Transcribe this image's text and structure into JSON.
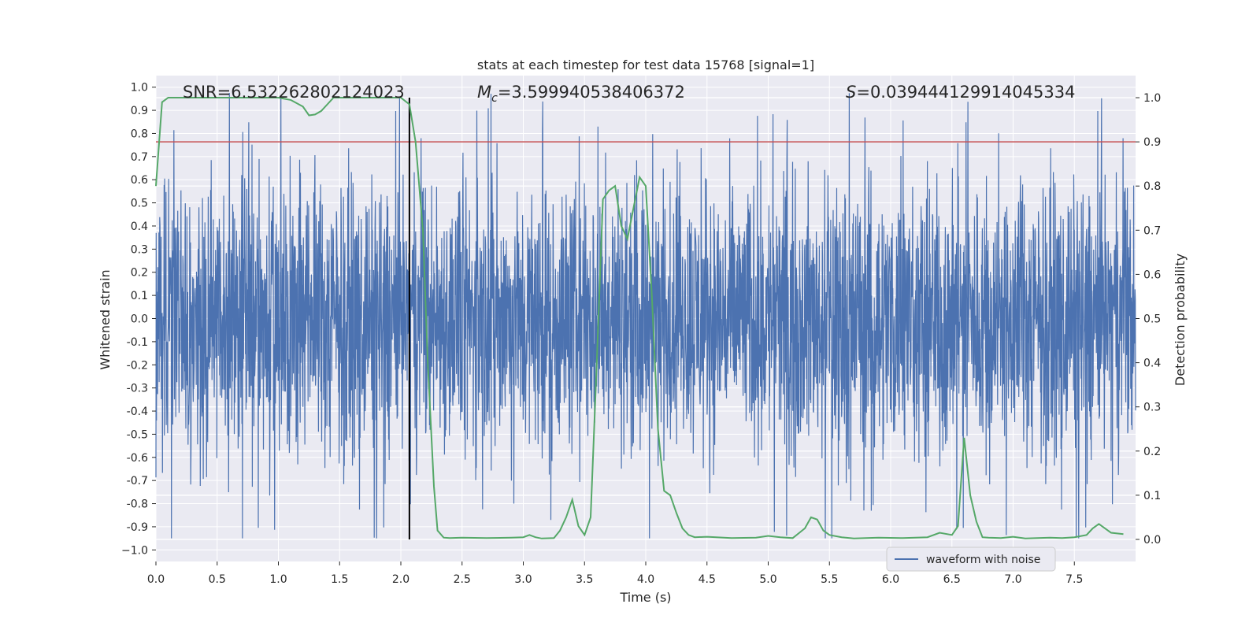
{
  "chart_data": {
    "type": "line",
    "title": "stats at each timestep for test data 15768 [signal=1]",
    "xlabel": "Time (s)",
    "ylabel": "Whitened strain",
    "y2label": "Detection probability",
    "xlim": [
      0.0,
      8.0
    ],
    "ylim": [
      -1.05,
      1.05
    ],
    "y2lim": [
      -0.05,
      1.05
    ],
    "xticks": [
      "0.0",
      "0.5",
      "1.0",
      "1.5",
      "2.0",
      "2.5",
      "3.0",
      "3.5",
      "4.0",
      "4.5",
      "5.0",
      "5.5",
      "6.0",
      "6.5",
      "7.0",
      "7.5"
    ],
    "yticks": [
      "1.0",
      "0.9",
      "0.8",
      "0.7",
      "0.6",
      "0.5",
      "0.4",
      "0.3",
      "0.2",
      "0.1",
      "0.0",
      "-0.1",
      "-0.2",
      "-0.3",
      "-0.4",
      "-0.5",
      "-0.6",
      "-0.7",
      "-0.8",
      "-0.9",
      "−1.0"
    ],
    "y2ticks": [
      "1.0",
      "0.9",
      "0.8",
      "0.7",
      "0.6",
      "0.5",
      "0.4",
      "0.3",
      "0.2",
      "0.1",
      "0.0"
    ],
    "annotations": {
      "snr": "SNR=6.532262802124023",
      "mc_symbol": "M",
      "mc_sub": "c",
      "mc_value": "=3.599940538406372",
      "s_symbol": "S",
      "s_value": "=0.039444129914045334"
    },
    "legend": {
      "label": "waveform with noise",
      "position": "lower-right"
    },
    "threshold": {
      "value": 0.9,
      "color": "#c44e52"
    },
    "marker_time": 2.07,
    "series": [
      {
        "name": "waveform with noise",
        "color": "#4c72b0",
        "kind": "noisy-strain",
        "x_range": [
          0.0,
          8.0
        ],
        "amplitude_core": 0.45,
        "peak_max": 1.0,
        "peak_min": -0.95
      },
      {
        "name": "detection probability",
        "color": "#55a868",
        "x": [
          0.0,
          0.05,
          0.1,
          0.2,
          0.4,
          0.7,
          0.9,
          1.0,
          1.1,
          1.2,
          1.25,
          1.3,
          1.35,
          1.4,
          1.45,
          1.5,
          1.7,
          1.9,
          2.0,
          2.07,
          2.12,
          2.18,
          2.22,
          2.27,
          2.3,
          2.35,
          2.4,
          2.5,
          2.7,
          2.9,
          3.0,
          3.05,
          3.1,
          3.15,
          3.25,
          3.3,
          3.35,
          3.4,
          3.45,
          3.5,
          3.55,
          3.6,
          3.65,
          3.7,
          3.75,
          3.8,
          3.85,
          3.9,
          3.95,
          4.0,
          4.05,
          4.1,
          4.15,
          4.2,
          4.25,
          4.3,
          4.35,
          4.4,
          4.5,
          4.7,
          4.9,
          5.0,
          5.1,
          5.2,
          5.3,
          5.35,
          5.4,
          5.45,
          5.5,
          5.6,
          5.7,
          5.9,
          6.1,
          6.3,
          6.4,
          6.5,
          6.55,
          6.6,
          6.65,
          6.7,
          6.75,
          6.8,
          6.9,
          7.0,
          7.1,
          7.3,
          7.4,
          7.5,
          7.6,
          7.65,
          7.7,
          7.8,
          7.9
        ],
        "values": [
          0.8,
          0.99,
          1.0,
          1.0,
          1.0,
          1.0,
          1.0,
          1.0,
          0.995,
          0.98,
          0.96,
          0.962,
          0.97,
          0.985,
          1.0,
          1.0,
          1.0,
          1.0,
          1.0,
          0.985,
          0.9,
          0.7,
          0.4,
          0.12,
          0.02,
          0.004,
          0.003,
          0.004,
          0.003,
          0.004,
          0.005,
          0.01,
          0.005,
          0.002,
          0.003,
          0.02,
          0.05,
          0.09,
          0.03,
          0.01,
          0.05,
          0.4,
          0.77,
          0.79,
          0.8,
          0.71,
          0.68,
          0.75,
          0.82,
          0.8,
          0.55,
          0.25,
          0.11,
          0.1,
          0.06,
          0.025,
          0.01,
          0.005,
          0.006,
          0.003,
          0.004,
          0.008,
          0.005,
          0.003,
          0.025,
          0.05,
          0.045,
          0.02,
          0.01,
          0.005,
          0.002,
          0.004,
          0.003,
          0.005,
          0.015,
          0.01,
          0.03,
          0.23,
          0.1,
          0.04,
          0.005,
          0.004,
          0.003,
          0.006,
          0.002,
          0.004,
          0.003,
          0.005,
          0.01,
          0.025,
          0.035,
          0.015,
          0.012
        ]
      }
    ]
  }
}
